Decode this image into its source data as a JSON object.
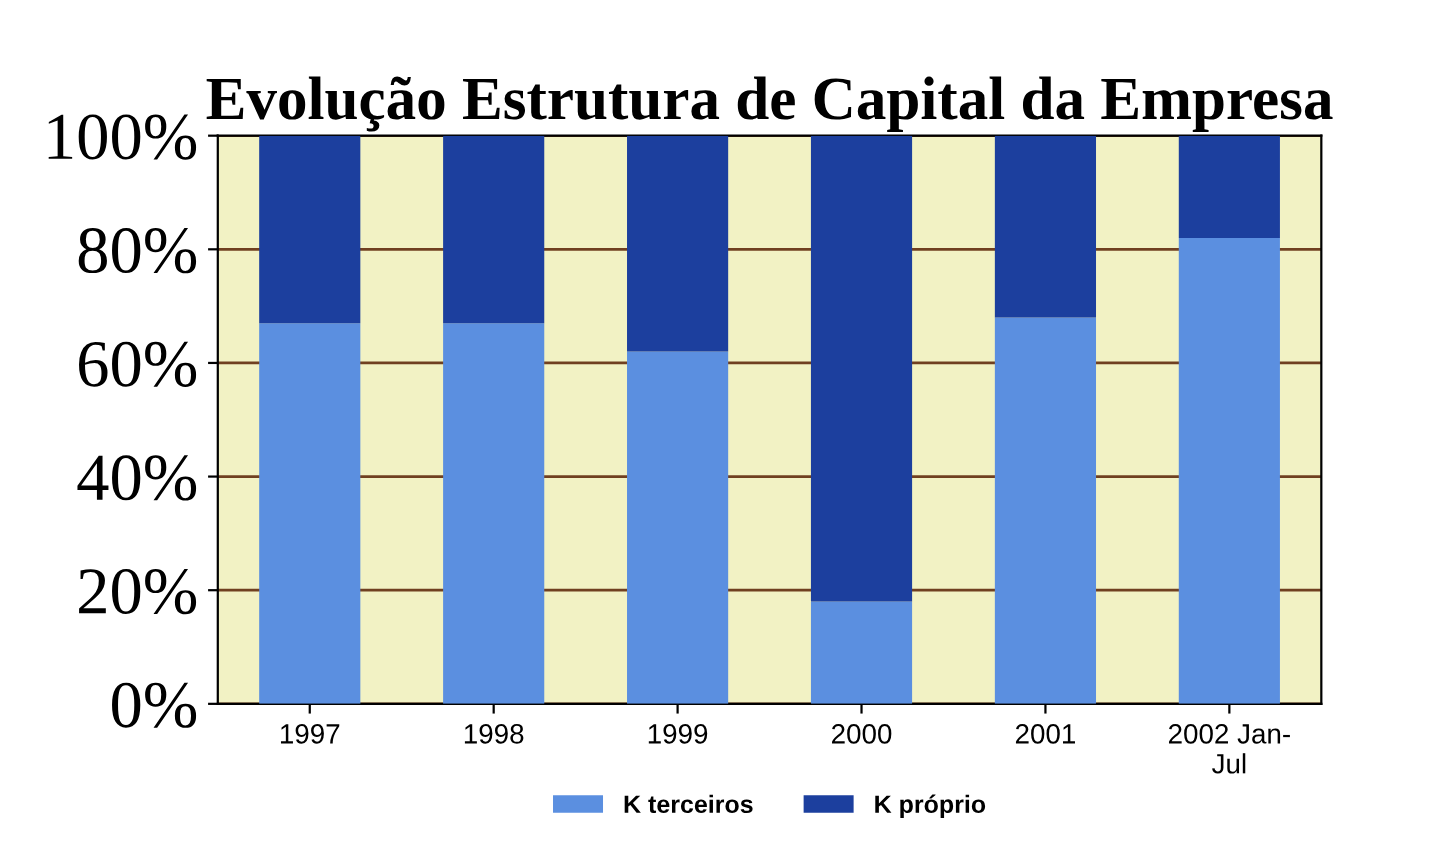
{
  "chart_data": {
    "type": "bar",
    "stacked": true,
    "title": "Evolução Estrutura de Capital da Empresa",
    "categories": [
      "1997",
      "1998",
      "1999",
      "2000",
      "2001",
      "2002 Jan-\nJul"
    ],
    "series": [
      {
        "name": "K terceiros",
        "color": "#5b8fe0",
        "values": [
          67,
          67,
          62,
          18,
          68,
          82
        ]
      },
      {
        "name": "K próprio",
        "color": "#1c3f9e",
        "values": [
          33,
          33,
          38,
          82,
          32,
          18
        ]
      }
    ],
    "ylim": [
      0,
      100
    ],
    "yticks": [
      {
        "value": 0,
        "label": "0%"
      },
      {
        "value": 20,
        "label": "20%"
      },
      {
        "value": 40,
        "label": "40%"
      },
      {
        "value": 60,
        "label": "60%"
      },
      {
        "value": 80,
        "label": "80%"
      },
      {
        "value": 100,
        "label": "100%"
      }
    ],
    "grid": "y",
    "legend": "bottom"
  }
}
